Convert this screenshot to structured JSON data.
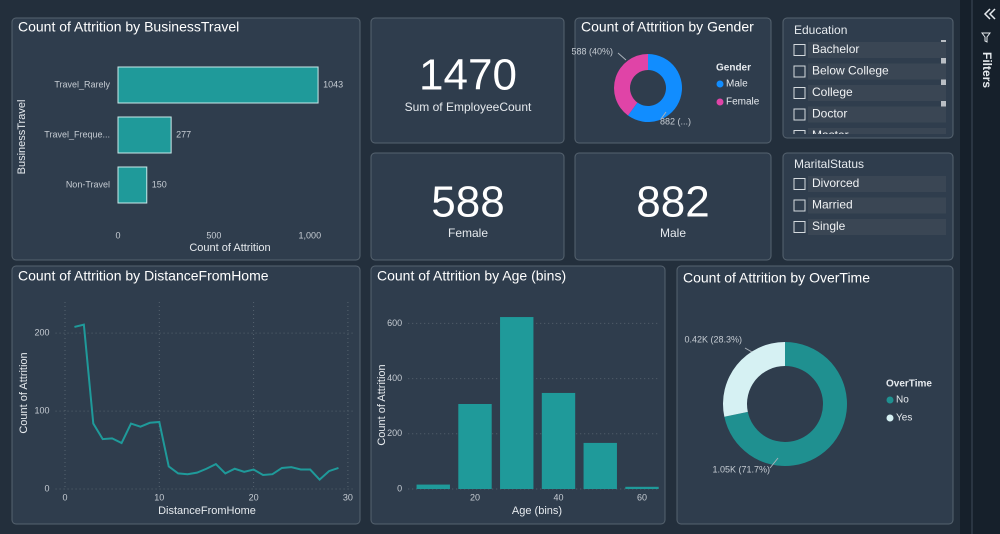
{
  "chart_data": [
    {
      "type": "bar",
      "orientation": "horizontal",
      "title": "Count of Attrition by BusinessTravel",
      "categories": [
        "Travel_Rarely",
        "Travel_Freque...",
        "Non-Travel"
      ],
      "values": [
        1043,
        277,
        150
      ],
      "color": "#1f9a9a",
      "x_label": "Count of Attrition",
      "y_label": "BusinessTravel",
      "xlim": [
        0,
        1100
      ],
      "xticks": [
        0,
        500,
        {
          "value": 1000,
          "label": "1,000"
        }
      ]
    },
    {
      "type": "line",
      "title": "Count of Attrition by DistanceFromHome",
      "x": [
        1,
        2,
        3,
        4,
        5,
        6,
        7,
        8,
        9,
        10,
        11,
        12,
        13,
        14,
        15,
        16,
        17,
        18,
        19,
        20,
        21,
        22,
        23,
        24,
        25,
        26,
        27,
        28,
        29
      ],
      "values": [
        208,
        211,
        84,
        64,
        65,
        59,
        84,
        80,
        85,
        86,
        29,
        20,
        19,
        21,
        26,
        32,
        20,
        26,
        22,
        25,
        18,
        19,
        27,
        28,
        25,
        25,
        12,
        23,
        27
      ],
      "color": "#1f9a9a",
      "x_label": "DistanceFromHome",
      "y_label": "Count of Attrition",
      "xlim": [
        -1,
        30.5
      ],
      "xticks": [
        0,
        10,
        20,
        30
      ],
      "ylim": [
        0,
        240
      ],
      "yticks": [
        0,
        100,
        200
      ],
      "grid": true
    },
    {
      "type": "bar",
      "title": "Count of Attrition by Age (bins)",
      "x": [
        10,
        20,
        30,
        40,
        50,
        60
      ],
      "values": [
        16,
        308,
        623,
        348,
        167,
        8
      ],
      "bin_width": 8,
      "color": "#1f9a9a",
      "x_label": "Age (bins)",
      "y_label": "Count of Attrition",
      "xlim": [
        4,
        64
      ],
      "xticks": [
        20,
        40,
        60
      ],
      "ylim": [
        0,
        650
      ],
      "yticks": [
        0,
        200,
        400,
        600
      ],
      "grid": true
    },
    {
      "type": "donut",
      "title": "Count of Attrition by Gender",
      "legend_title": "Gender",
      "categories": [
        "Male",
        "Female"
      ],
      "values": [
        882,
        588
      ],
      "value_labels": [
        "882 (...)",
        "588 (40%)"
      ],
      "colors": [
        "#118dff",
        "#e044a7"
      ]
    },
    {
      "type": "donut",
      "title": "Count of Attrition by OverTime",
      "legend_title": "OverTime",
      "categories": [
        "No",
        "Yes"
      ],
      "values": [
        1054,
        416
      ],
      "value_labels": [
        "1.05K (71.7%)",
        "0.42K (28.3%)"
      ],
      "colors": [
        "#1f9090",
        "#d6f1f3"
      ]
    }
  ],
  "cards": [
    {
      "value": 1470,
      "label": "Sum of EmployeeCount"
    },
    {
      "value": 588,
      "label": "Female"
    },
    {
      "value": 882,
      "label": "Male"
    }
  ],
  "slicers": [
    {
      "title": "Education",
      "items": [
        "Bachelor",
        "Below College",
        "College",
        "Doctor",
        "Master"
      ]
    },
    {
      "title": "MaritalStatus",
      "items": [
        "Divorced",
        "Married",
        "Single"
      ]
    }
  ],
  "filters_pane": {
    "title": "Filters"
  }
}
